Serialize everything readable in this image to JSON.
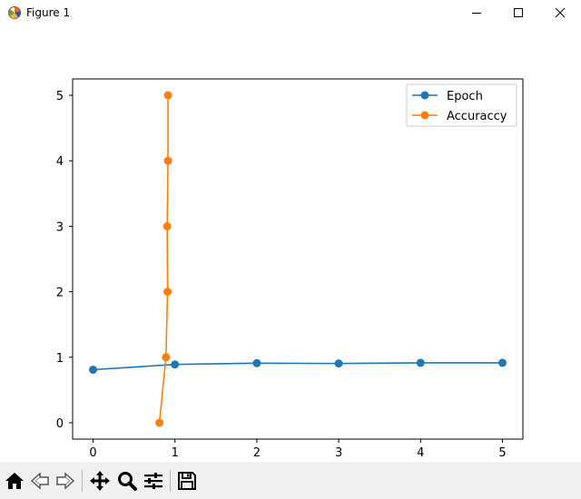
{
  "window": {
    "title": "Figure 1",
    "icon": "matplotlib-figure-icon",
    "controls": [
      "minimize-icon",
      "maximize-icon",
      "close-icon"
    ]
  },
  "toolbar": {
    "tools": [
      {
        "name": "home-button",
        "icon": "home-icon"
      },
      {
        "name": "back-button",
        "icon": "back-arrow-icon"
      },
      {
        "name": "forward-button",
        "icon": "forward-arrow-icon"
      },
      {
        "name": "pan-button",
        "icon": "move-arrows-icon"
      },
      {
        "name": "zoom-button",
        "icon": "magnifier-icon"
      },
      {
        "name": "configure-subplots-button",
        "icon": "sliders-icon"
      },
      {
        "name": "save-button",
        "icon": "floppy-disk-icon"
      }
    ]
  },
  "chart_data": {
    "type": "line",
    "title": "",
    "xlabel": "",
    "ylabel": "",
    "xlim": [
      -0.25,
      5.25
    ],
    "ylim": [
      -0.25,
      5.25
    ],
    "xticks": [
      "0",
      "1",
      "2",
      "3",
      "4",
      "5"
    ],
    "yticks": [
      "0",
      "1",
      "2",
      "3",
      "4",
      "5"
    ],
    "grid": false,
    "legend": "top-right",
    "series": [
      {
        "name": "Epoch",
        "color": "#1f77b4",
        "marker": "circle",
        "x": [
          0,
          1,
          2,
          3,
          4,
          5
        ],
        "y": [
          0.81,
          0.89,
          0.91,
          0.905,
          0.915,
          0.915
        ]
      },
      {
        "name": "Accuraccy",
        "color": "#ff7f0e",
        "marker": "circle",
        "x": [
          0.81,
          0.89,
          0.91,
          0.905,
          0.915,
          0.915
        ],
        "y": [
          0,
          1,
          2,
          3,
          4,
          5
        ]
      }
    ]
  }
}
